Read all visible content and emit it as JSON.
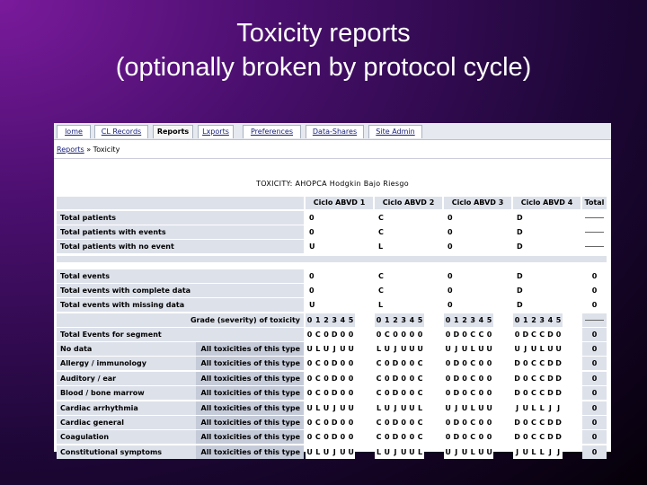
{
  "slide": {
    "title_line1": "Toxicity reports",
    "title_line2": "(optionally broken by protocol cycle)"
  },
  "tabs": [
    "lome",
    "CL Records",
    "Reports",
    "Lxports",
    "Preferences",
    "Data-Shares",
    "Site Admin"
  ],
  "active_tab": 2,
  "breadcrumb": {
    "link": "Reports",
    "separator": " » ",
    "current": "Toxicity"
  },
  "report": {
    "title": "TOXICITY: AHOPCA Hodgkin Bajo Riesgo",
    "cycles": [
      "Ciclo ABVD 1",
      "Ciclo ABVD 2",
      "Ciclo ABVD 3",
      "Ciclo ABVD 4"
    ],
    "total_header": "Total",
    "summary1": [
      {
        "label": "Total patients",
        "values": [
          "0",
          "C",
          "0",
          "D"
        ]
      },
      {
        "label": "Total patients with events",
        "values": [
          "0",
          "C",
          "0",
          "D"
        ]
      },
      {
        "label": "Total patients with no event",
        "values": [
          "U",
          "L",
          "0",
          "D"
        ]
      }
    ],
    "summary2": [
      {
        "label": "Total events",
        "values": [
          "0",
          "C",
          "0",
          "D"
        ],
        "total": "0"
      },
      {
        "label": "Total events with complete data",
        "values": [
          "0",
          "C",
          "0",
          "D"
        ],
        "total": "0"
      },
      {
        "label": "Total events with missing data",
        "values": [
          "U",
          "L",
          "0",
          "D"
        ],
        "total": "0"
      }
    ],
    "grade_header": "Grade (severity) of toxicity",
    "grades": [
      "0",
      "1",
      "2",
      "3",
      "4",
      "5"
    ],
    "seg_row": {
      "label": "Total Events for segment",
      "values": [
        "0",
        "C",
        "0",
        "D",
        "0",
        "0",
        "0",
        "C",
        "0",
        "0",
        "0",
        "0",
        "0",
        "D",
        "0",
        "C",
        "C",
        "0",
        "0",
        "D",
        "C",
        "C",
        "D",
        "0"
      ],
      "total": "0"
    },
    "tox_rows": [
      {
        "label": "No data",
        "scope": "All toxicities of this type",
        "values": [
          "U",
          "L",
          "U",
          "J",
          "U",
          "U",
          "L",
          "U",
          "J",
          "U",
          "U",
          "U",
          "U",
          "J",
          "U",
          "L",
          "U",
          "U",
          "U",
          "J",
          "U",
          "L",
          "U",
          "U"
        ],
        "total": "0"
      },
      {
        "label": "Allergy / immunology",
        "scope": "All toxicities of this type",
        "values": [
          "0",
          "C",
          "0",
          "D",
          "0",
          "0",
          "C",
          "0",
          "D",
          "0",
          "0",
          "C",
          "0",
          "D",
          "0",
          "C",
          "0",
          "0",
          "D",
          "0",
          "C",
          "C",
          "D",
          "D"
        ],
        "total": "0"
      },
      {
        "label": "Auditory / ear",
        "scope": "All toxicities of this type",
        "values": [
          "0",
          "C",
          "0",
          "D",
          "0",
          "0",
          "C",
          "0",
          "D",
          "0",
          "0",
          "C",
          "0",
          "D",
          "0",
          "C",
          "0",
          "0",
          "D",
          "0",
          "C",
          "C",
          "D",
          "D"
        ],
        "total": "0"
      },
      {
        "label": "Blood / bone marrow",
        "scope": "All toxicities of this type",
        "values": [
          "0",
          "C",
          "0",
          "D",
          "0",
          "0",
          "C",
          "0",
          "D",
          "0",
          "0",
          "C",
          "0",
          "D",
          "0",
          "C",
          "0",
          "0",
          "D",
          "0",
          "C",
          "C",
          "D",
          "D"
        ],
        "total": "0"
      },
      {
        "label": "Cardiac arrhythmia",
        "scope": "All toxicities of this type",
        "values": [
          "U",
          "L",
          "U",
          "J",
          "U",
          "U",
          "L",
          "U",
          "J",
          "U",
          "U",
          "L",
          "U",
          "J",
          "U",
          "L",
          "U",
          "U",
          "J",
          "U",
          "L",
          "L",
          "J",
          "J"
        ],
        "total": "0"
      },
      {
        "label": "Cardiac general",
        "scope": "All toxicities of this type",
        "values": [
          "0",
          "C",
          "0",
          "D",
          "0",
          "0",
          "C",
          "0",
          "D",
          "0",
          "0",
          "C",
          "0",
          "D",
          "0",
          "C",
          "0",
          "0",
          "D",
          "0",
          "C",
          "C",
          "D",
          "D"
        ],
        "total": "0"
      },
      {
        "label": "Coagulation",
        "scope": "All toxicities of this type",
        "values": [
          "0",
          "C",
          "0",
          "D",
          "0",
          "0",
          "C",
          "0",
          "D",
          "0",
          "0",
          "C",
          "0",
          "D",
          "0",
          "C",
          "0",
          "0",
          "D",
          "0",
          "C",
          "C",
          "D",
          "D"
        ],
        "total": "0"
      },
      {
        "label": "Constitutional symptoms",
        "scope": "All toxicities of this type",
        "values": [
          "U",
          "L",
          "U",
          "J",
          "U",
          "U",
          "L",
          "U",
          "J",
          "U",
          "U",
          "L",
          "U",
          "J",
          "U",
          "L",
          "U",
          "U",
          "J",
          "U",
          "L",
          "L",
          "J",
          "J"
        ],
        "total": "0"
      }
    ]
  },
  "colors": {
    "label_bg": "#dde1ea",
    "value_bg": "#ffffff",
    "scope_bg": "#c5cbd8",
    "seg_bg": "#dde1ea",
    "total_bg": "#dde1ea"
  }
}
